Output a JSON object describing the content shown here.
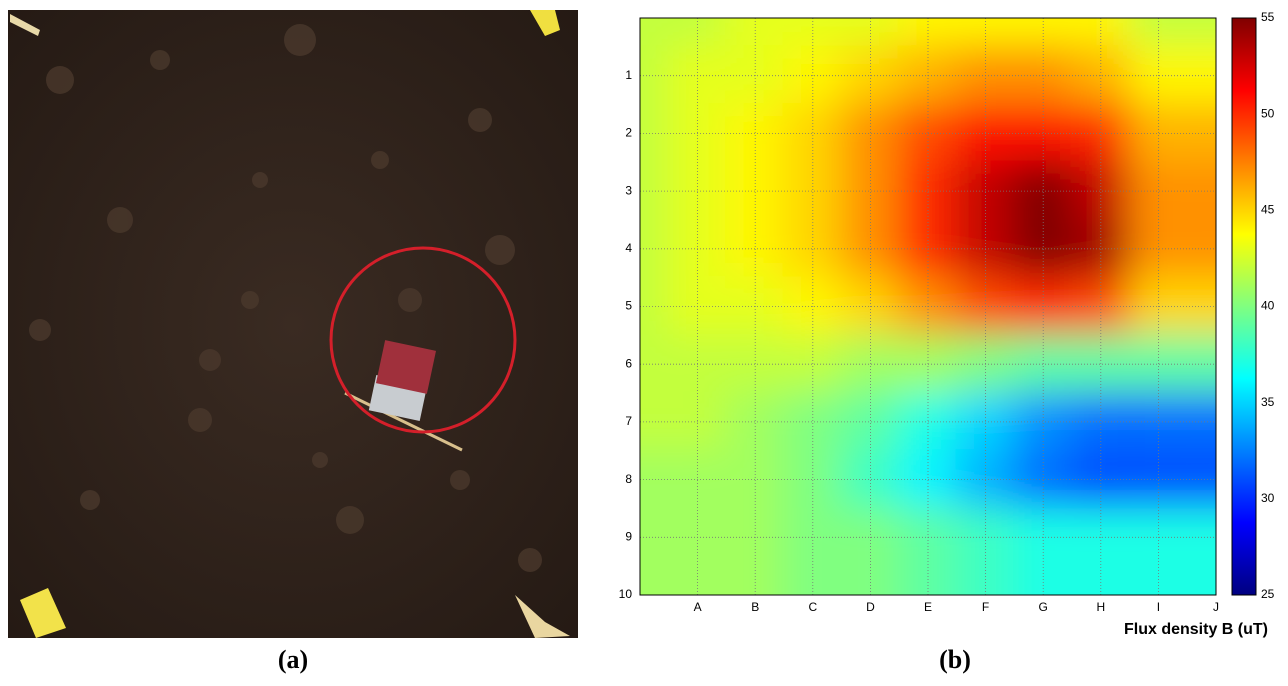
{
  "captions": [
    "(a)",
    "(b)"
  ],
  "chart_data": {
    "type": "heatmap",
    "xlabel": "Flux density B (uT)",
    "x": [
      0,
      1,
      2,
      3,
      4,
      5,
      6,
      7,
      8,
      9,
      10
    ],
    "y": [
      0,
      1,
      2,
      3,
      4,
      5,
      6,
      7,
      8,
      9,
      10
    ],
    "z": [
      [
        42,
        42,
        43,
        43,
        43,
        44,
        44,
        44,
        44,
        43,
        42
      ],
      [
        42,
        43,
        43,
        44,
        45,
        46,
        47,
        47,
        46,
        45,
        44
      ],
      [
        42,
        43,
        44,
        45,
        47,
        49,
        51,
        51,
        50,
        48,
        46
      ],
      [
        42,
        43,
        44,
        45,
        47,
        50,
        53,
        55,
        53,
        50,
        47
      ],
      [
        42,
        43,
        44,
        45,
        47,
        50,
        53,
        55,
        54,
        51,
        47
      ],
      [
        42,
        43,
        43,
        44,
        45,
        47,
        49,
        50,
        49,
        47,
        45
      ],
      [
        42,
        42,
        42,
        42,
        41,
        41,
        40,
        39,
        39,
        39,
        39
      ],
      [
        42,
        42,
        41,
        40,
        39,
        37,
        35,
        33,
        32,
        31,
        32
      ],
      [
        41,
        41,
        41,
        40,
        38,
        36,
        34,
        32,
        31,
        30,
        31
      ],
      [
        41,
        41,
        41,
        40,
        39,
        38,
        36,
        35,
        34,
        34,
        35
      ],
      [
        41,
        41,
        41,
        40,
        40,
        39,
        38,
        37,
        37,
        37,
        37
      ]
    ],
    "xlim": [
      0,
      10
    ],
    "ylim": [
      10,
      0
    ],
    "xticks": [
      {
        "value": 1,
        "label": "A"
      },
      {
        "value": 2,
        "label": "B"
      },
      {
        "value": 3,
        "label": "C"
      },
      {
        "value": 4,
        "label": "D"
      },
      {
        "value": 5,
        "label": "E"
      },
      {
        "value": 6,
        "label": "F"
      },
      {
        "value": 7,
        "label": "G"
      },
      {
        "value": 8,
        "label": "H"
      },
      {
        "value": 9,
        "label": "I"
      },
      {
        "value": 10,
        "label": "J"
      }
    ],
    "yticks": [
      1,
      2,
      3,
      4,
      5,
      6,
      7,
      8,
      9,
      10
    ],
    "clim": [
      25,
      55
    ],
    "cticks": [
      25,
      30,
      35,
      40,
      45,
      50,
      55
    ],
    "colormap": "jet",
    "grid": true
  }
}
